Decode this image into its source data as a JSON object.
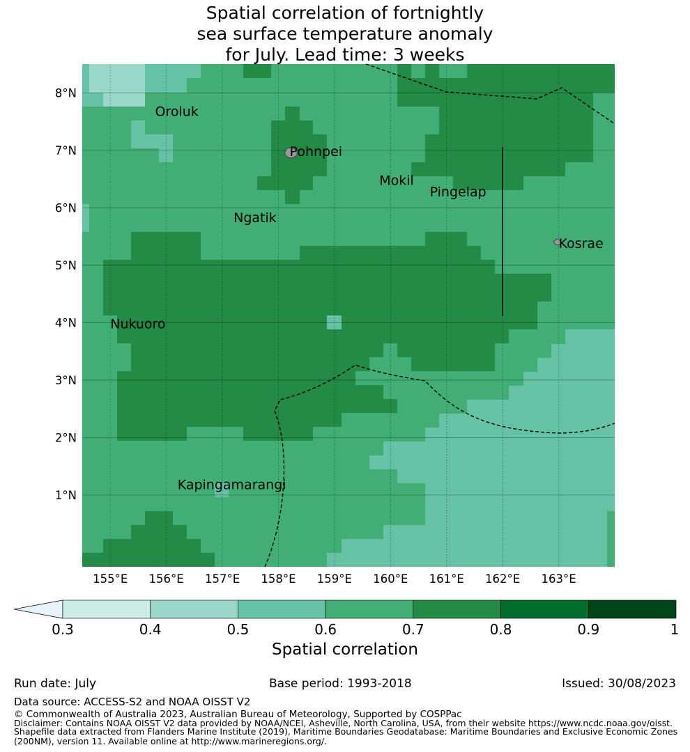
{
  "title_lines": [
    "Spatial correlation of fortnightly",
    "sea surface temperature anomaly",
    "for July. Lead time: 3 weeks"
  ],
  "map": {
    "lon_range": [
      154.5,
      164.0
    ],
    "lat_range": [
      -0.25,
      8.5
    ],
    "x_ticks": [
      "155°E",
      "156°E",
      "157°E",
      "158°E",
      "159°E",
      "160°E",
      "161°E",
      "162°E",
      "163°E"
    ],
    "y_ticks": [
      "1°N",
      "2°N",
      "3°N",
      "4°N",
      "5°N",
      "6°N",
      "7°N",
      "8°N"
    ],
    "places": [
      {
        "name": "Oroluk",
        "lon": 155.8,
        "lat": 7.6
      },
      {
        "name": "Pohnpei",
        "lon": 158.2,
        "lat": 6.9
      },
      {
        "name": "Mokil",
        "lon": 159.8,
        "lat": 6.4
      },
      {
        "name": "Pingelap",
        "lon": 160.7,
        "lat": 6.2
      },
      {
        "name": "Ngatik",
        "lon": 157.2,
        "lat": 5.75
      },
      {
        "name": "Kosrae",
        "lon": 163.0,
        "lat": 5.3
      },
      {
        "name": "Nukuoro",
        "lon": 155.0,
        "lat": 3.9
      },
      {
        "name": "Kapingamarangi",
        "lon": 156.2,
        "lat": 1.1
      }
    ]
  },
  "colorbar": {
    "ticks": [
      "0.3",
      "0.4",
      "0.5",
      "0.6",
      "0.7",
      "0.8",
      "0.9",
      "1"
    ],
    "colors": [
      "#e5f5f9",
      "#ccece6",
      "#99d8c9",
      "#66c2a4",
      "#41ae76",
      "#238b45",
      "#006d2c",
      "#00441b"
    ],
    "label": "Spatial correlation"
  },
  "footer": {
    "run_date": "Run date: July",
    "base_period": "Base period: 1993-2018",
    "issued": "Issued: 30/08/2023",
    "data_source": "Data source: ACCESS-S2 and NOAA OISST V2",
    "copyright": "© Commonwealth of Australia 2023, Australian Bureau of Meteorology, Supported by COSPPac",
    "disclaimer_1": "Disclaimer: Contains NOAA OISST V2 data provided by NOAA/NCEI, Asheville, North Carolina, USA, from their website https://www.ncdc.noaa.gov/oisst.",
    "disclaimer_2": "Shapefile data extracted from Flanders Marine Institute (2019), Maritime Boundaries Geodatabase: Maritime Boundaries and Exclusive Economic Zones",
    "disclaimer_3": "(200NM), version 11. Available online at http://www.marineregions.org/."
  }
}
